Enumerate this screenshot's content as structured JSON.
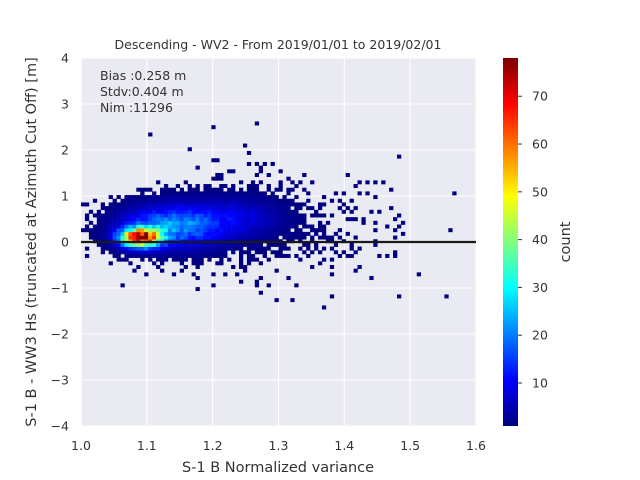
{
  "chart_data": {
    "type": "heatmap",
    "title": "Descending - WV2 - From 2019/01/01 to 2019/02/01",
    "xlabel": "S-1 B Normalized variance",
    "ylabel": "S-1 B - WW3 Hs (truncated at Azimuth Cut Off) [m]",
    "xlim": [
      1.0,
      1.6
    ],
    "ylim": [
      -4,
      4
    ],
    "x_ticks": [
      "1.0",
      "1.1",
      "1.2",
      "1.3",
      "1.4",
      "1.5",
      "1.6"
    ],
    "y_ticks": [
      "4",
      "3",
      "2",
      "1",
      "0",
      "−1",
      "−2",
      "−3",
      "−4"
    ],
    "grid": true,
    "stats": [
      "Bias :0.258 m",
      "Stdv:0.404 m",
      "Nim :11296"
    ],
    "reference_line_y": 0,
    "colorbar": {
      "label": "count",
      "range": [
        1,
        78
      ],
      "ticks": [
        "10",
        "20",
        "30",
        "40",
        "50",
        "60",
        "70"
      ],
      "colormap": "jet"
    },
    "density_core": {
      "center_x": 1.09,
      "center_y": 0.1,
      "peak_count": 78
    },
    "colors": {
      "background": "#eaeaf2",
      "grid": "#ffffff",
      "line": "#1a1a1a"
    }
  }
}
